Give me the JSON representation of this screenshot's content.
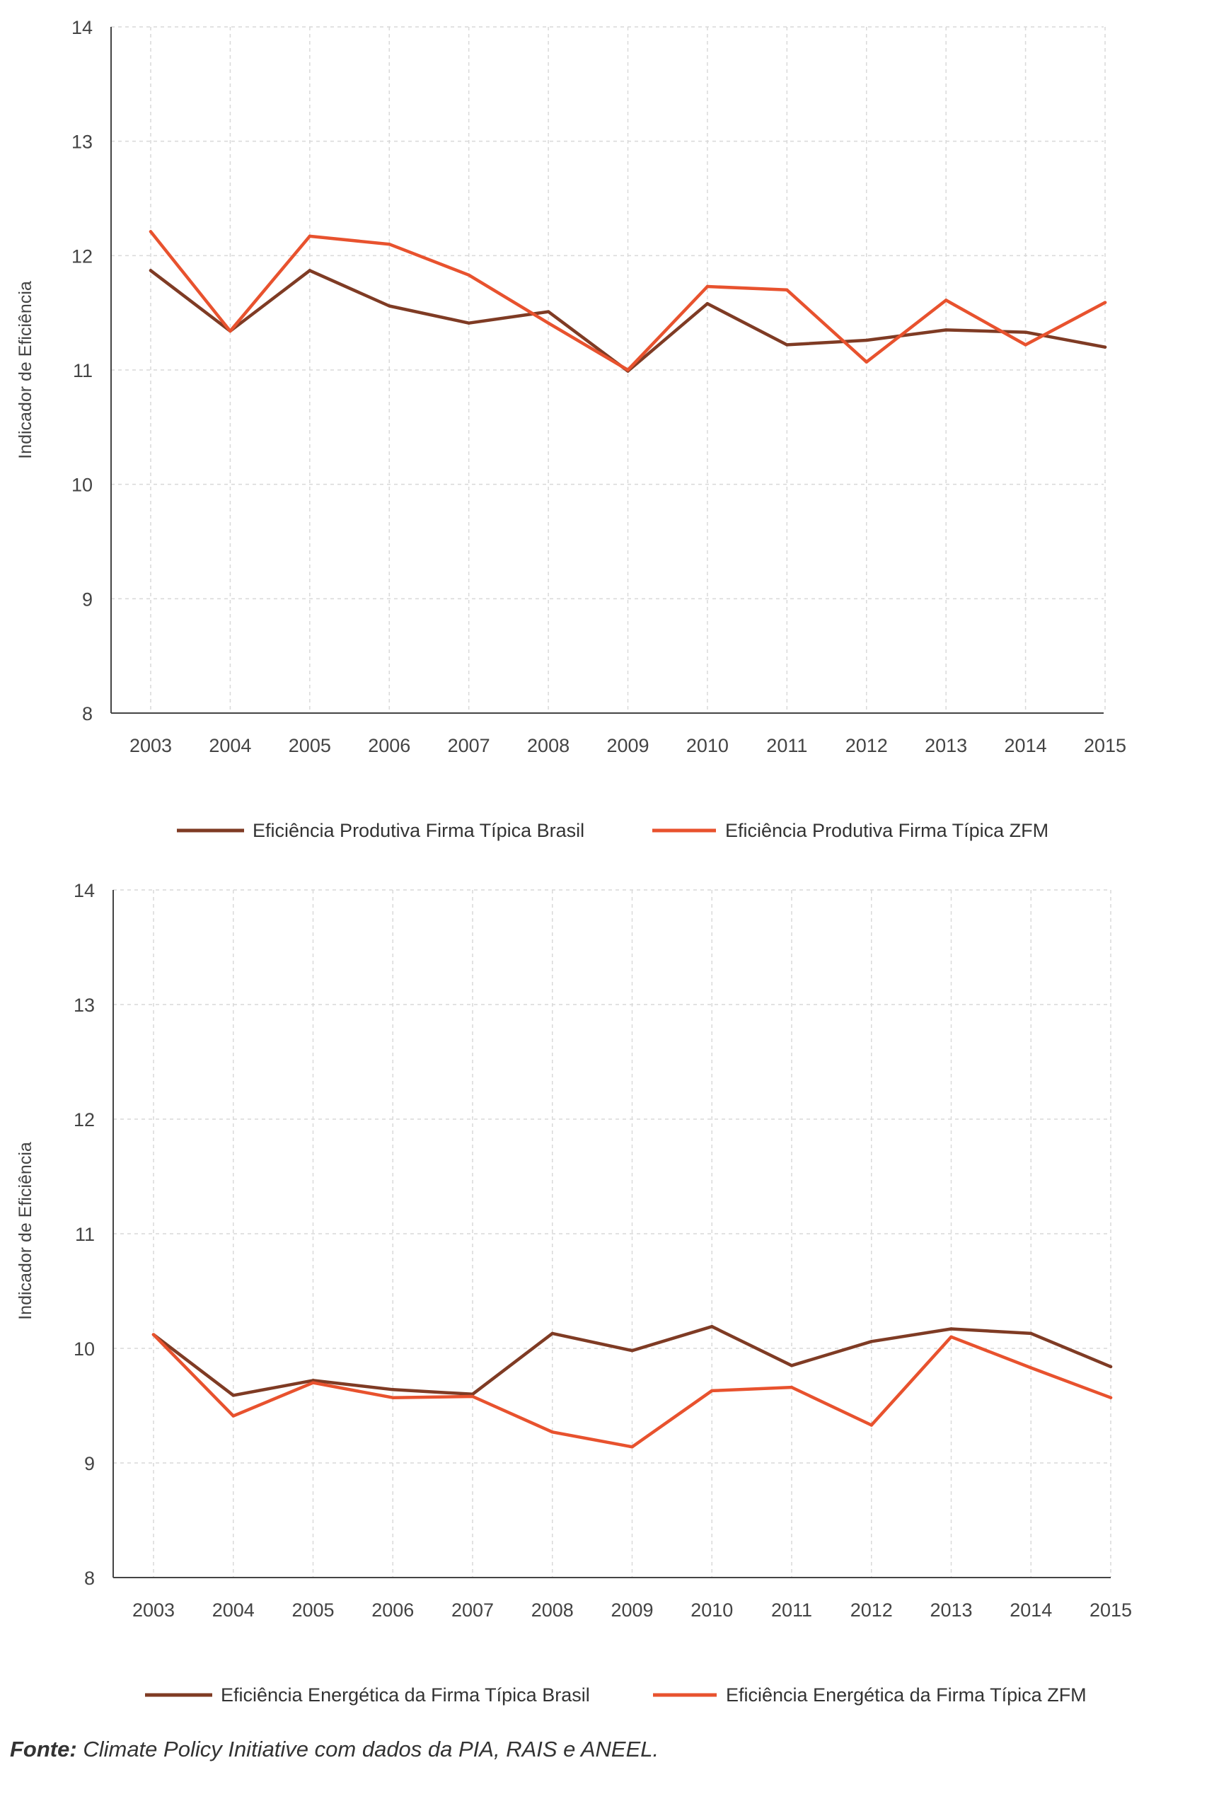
{
  "chart_data": [
    {
      "type": "line",
      "title": "",
      "xlabel": "",
      "ylabel": "Indicador de Eficiência",
      "ylim": [
        8,
        14
      ],
      "yticks": [
        8,
        9,
        10,
        11,
        12,
        13,
        14
      ],
      "categories": [
        "2003",
        "2004",
        "2005",
        "2006",
        "2007",
        "2008",
        "2009",
        "2010",
        "2011",
        "2012",
        "2013",
        "2014",
        "2015"
      ],
      "grid": true,
      "legend_position": "bottom",
      "series": [
        {
          "name": "Eficiência Produtiva Firma Típica Brasil",
          "color": "#7f3b24",
          "values": [
            11.87,
            11.34,
            11.87,
            11.56,
            11.41,
            11.51,
            10.99,
            11.58,
            11.22,
            11.26,
            11.35,
            11.33,
            11.2
          ]
        },
        {
          "name": "Eficiência Produtiva Firma Típica ZFM",
          "color": "#e8522e",
          "values": [
            12.21,
            11.34,
            12.17,
            12.1,
            11.83,
            11.41,
            11.0,
            11.73,
            11.7,
            11.07,
            11.61,
            11.22,
            11.59
          ]
        }
      ]
    },
    {
      "type": "line",
      "title": "",
      "xlabel": "",
      "ylabel": "Indicador de Eficiência",
      "ylim": [
        8,
        14
      ],
      "yticks": [
        8,
        9,
        10,
        11,
        12,
        13,
        14
      ],
      "categories": [
        "2003",
        "2004",
        "2005",
        "2006",
        "2007",
        "2008",
        "2009",
        "2010",
        "2011",
        "2012",
        "2013",
        "2014",
        "2015"
      ],
      "grid": true,
      "legend_position": "bottom",
      "series": [
        {
          "name": "Eficiência Energética da Firma Típica Brasil",
          "color": "#7f3b24",
          "values": [
            10.12,
            9.59,
            9.72,
            9.64,
            9.6,
            10.13,
            9.98,
            10.19,
            9.85,
            10.06,
            10.17,
            10.13,
            9.84
          ]
        },
        {
          "name": "Eficiência Energética da Firma Típica ZFM",
          "color": "#e8522e",
          "values": [
            10.12,
            9.41,
            9.7,
            9.57,
            9.58,
            9.27,
            9.14,
            9.63,
            9.66,
            9.33,
            10.1,
            9.83,
            9.57
          ]
        }
      ]
    }
  ],
  "source_note": {
    "label": "Fonte:",
    "text": "Climate Policy Initiative com dados da PIA, RAIS e ANEEL."
  }
}
